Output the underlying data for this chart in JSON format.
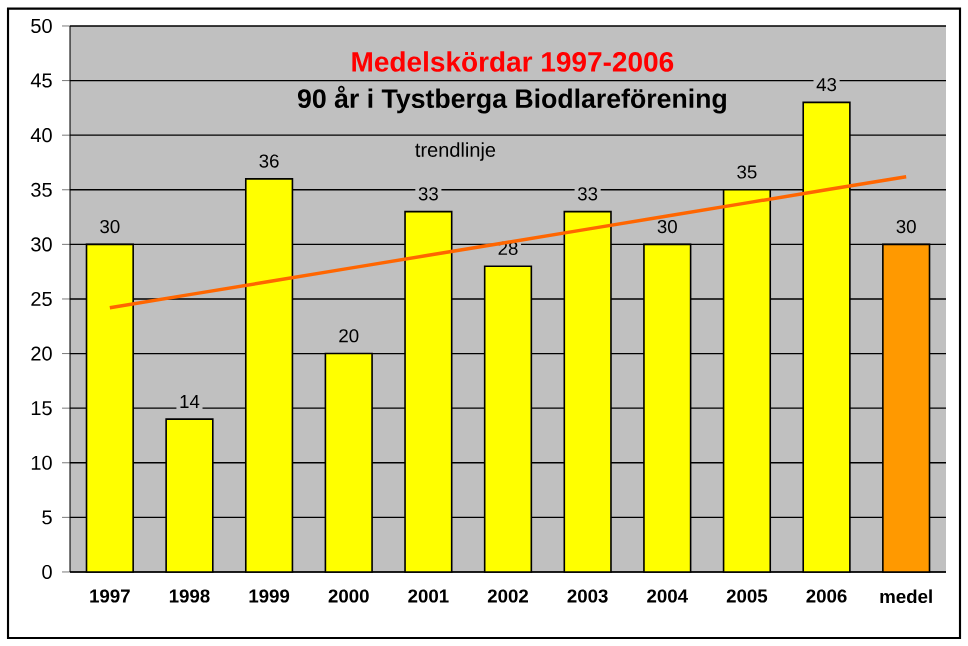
{
  "chart_data": {
    "type": "bar",
    "title": "Medelskördar 1997-2006",
    "subtitle": "90 år i Tystberga Biodlareförening",
    "categories": [
      "1997",
      "1998",
      "1999",
      "2000",
      "2001",
      "2002",
      "2003",
      "2004",
      "2005",
      "2006",
      "medel"
    ],
    "series": [
      {
        "values": [
          30,
          14,
          36,
          20,
          33,
          28,
          33,
          30,
          35,
          43,
          30
        ],
        "value_labels": [
          "30",
          "14",
          "36",
          "20",
          "33",
          "28",
          "33",
          "30",
          "35",
          "43",
          "30"
        ],
        "colors": [
          "#ffff00",
          "#ffff00",
          "#ffff00",
          "#ffff00",
          "#ffff00",
          "#ffff00",
          "#ffff00",
          "#ffff00",
          "#ffff00",
          "#ffff00",
          "#ff9900"
        ]
      },
      {
        "type": "line",
        "name": "trendlinje",
        "color": "#ff6600",
        "values": [
          24.2,
          25.4,
          26.6,
          27.8,
          29.0,
          30.2,
          31.4,
          32.6,
          33.8,
          35.0,
          36.2
        ]
      }
    ],
    "ylim": [
      0,
      50
    ],
    "yticks": [
      0,
      5,
      10,
      15,
      20,
      25,
      30,
      35,
      40,
      45,
      50
    ],
    "grid": "y"
  }
}
